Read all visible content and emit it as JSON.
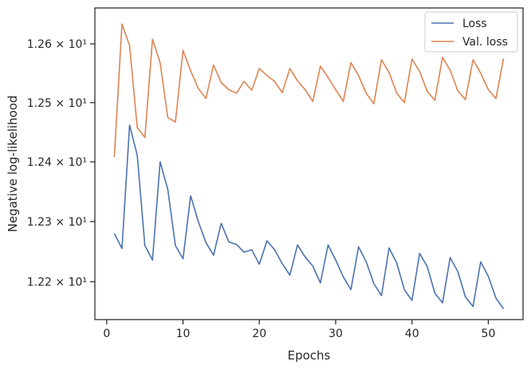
{
  "chart_data": {
    "type": "line",
    "xlabel": "Epochs",
    "ylabel": "Negative log-likelihood",
    "xlim": [
      -1.55,
      54.55
    ],
    "ylim": [
      12.1375,
      12.6615
    ],
    "yscale": "log",
    "grid": false,
    "legend_position": "top-right",
    "xticks": [
      0,
      10,
      20,
      30,
      40,
      50
    ],
    "xtick_labels": [
      "0",
      "10",
      "20",
      "30",
      "40",
      "50"
    ],
    "yticks": [
      12.2,
      12.3,
      12.4,
      12.5,
      12.6
    ],
    "ytick_labels": [
      "1.22 × 10¹",
      "1.23 × 10¹",
      "1.24 × 10¹",
      "1.25 × 10¹",
      "1.26 × 10¹"
    ],
    "x": [
      1,
      2,
      3,
      4,
      5,
      6,
      7,
      8,
      9,
      10,
      11,
      12,
      13,
      14,
      15,
      16,
      17,
      18,
      19,
      20,
      21,
      22,
      23,
      24,
      25,
      26,
      27,
      28,
      29,
      30,
      31,
      32,
      33,
      34,
      35,
      36,
      37,
      38,
      39,
      40,
      41,
      42,
      43,
      44,
      45,
      46,
      47,
      48,
      49,
      50,
      51,
      52
    ],
    "series": [
      {
        "name": "Loss",
        "color": "#4c72b0",
        "values": [
          12.28,
          12.255,
          12.462,
          12.411,
          12.26,
          12.236,
          12.4,
          12.354,
          12.26,
          12.238,
          12.343,
          12.3,
          12.265,
          12.244,
          12.297,
          12.266,
          12.262,
          12.249,
          12.253,
          12.229,
          12.268,
          12.253,
          12.23,
          12.211,
          12.261,
          12.241,
          12.226,
          12.198,
          12.261,
          12.236,
          12.208,
          12.187,
          12.258,
          12.233,
          12.197,
          12.177,
          12.256,
          12.231,
          12.187,
          12.169,
          12.247,
          12.225,
          12.181,
          12.165,
          12.24,
          12.217,
          12.175,
          12.159,
          12.233,
          12.209,
          12.173,
          12.155
        ]
      },
      {
        "name": "Val. loss",
        "color": "#dd8452",
        "values": [
          12.408,
          12.634,
          12.597,
          12.458,
          12.441,
          12.608,
          12.568,
          12.475,
          12.467,
          12.589,
          12.554,
          12.524,
          12.507,
          12.564,
          12.534,
          12.522,
          12.516,
          12.536,
          12.521,
          12.558,
          12.546,
          12.536,
          12.517,
          12.558,
          12.537,
          12.522,
          12.502,
          12.562,
          12.543,
          12.522,
          12.502,
          12.568,
          12.546,
          12.516,
          12.498,
          12.573,
          12.551,
          12.516,
          12.5,
          12.574,
          12.553,
          12.519,
          12.504,
          12.577,
          12.555,
          12.52,
          12.505,
          12.573,
          12.55,
          12.522,
          12.507,
          12.575
        ]
      }
    ]
  }
}
